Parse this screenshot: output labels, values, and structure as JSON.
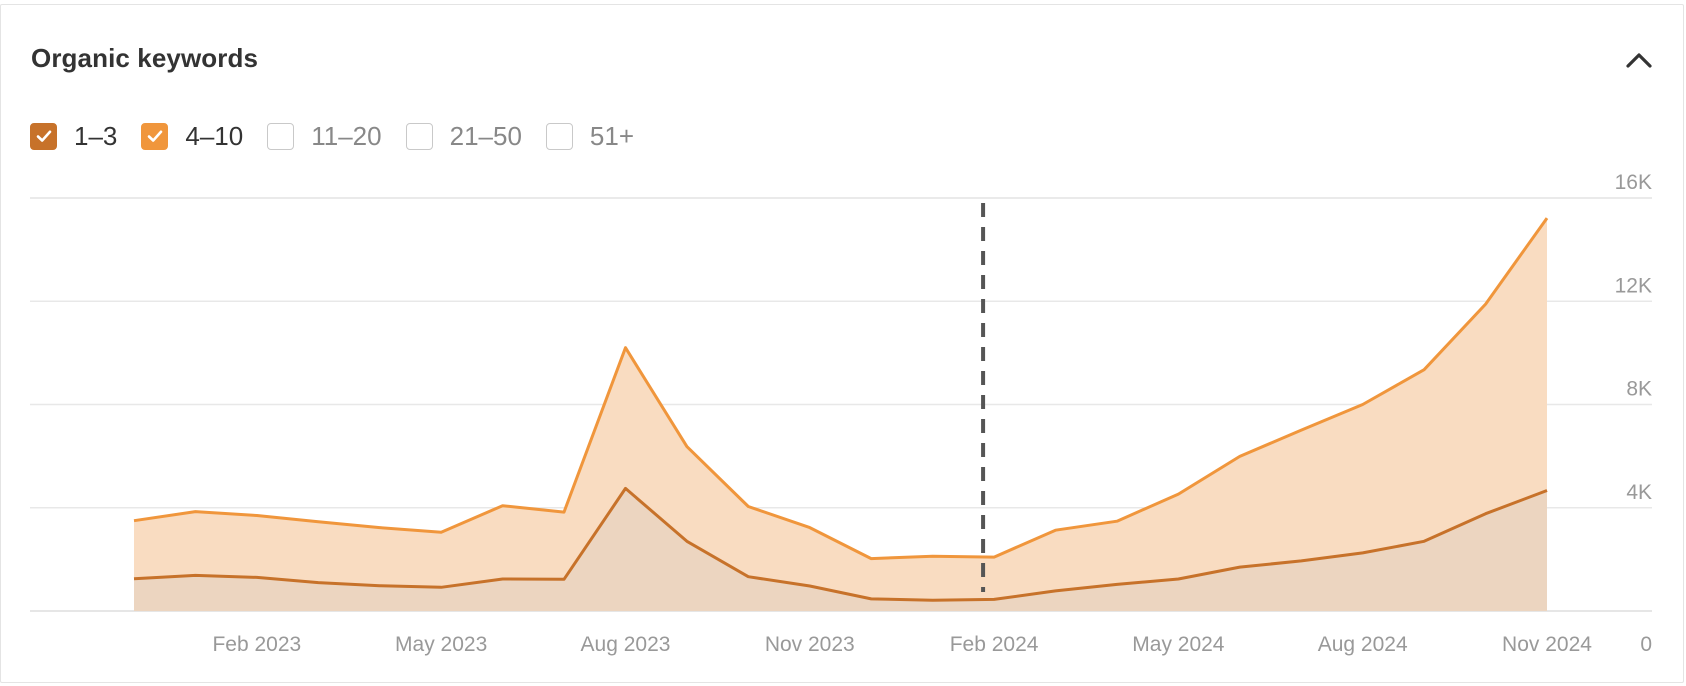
{
  "panel": {
    "title": "Organic keywords"
  },
  "legend": [
    {
      "label": "1–3",
      "checked": true,
      "color": "#c7722a"
    },
    {
      "label": "4–10",
      "checked": true,
      "color": "#f0963c"
    },
    {
      "label": "11–20",
      "checked": false,
      "color": ""
    },
    {
      "label": "21–50",
      "checked": false,
      "color": ""
    },
    {
      "label": "51+",
      "checked": false,
      "color": ""
    }
  ],
  "chart_data": {
    "type": "area",
    "stacked": true,
    "x_ticks": [
      "Feb 2023",
      "May 2023",
      "Aug 2023",
      "Nov 2023",
      "Feb 2024",
      "May 2024",
      "Aug 2024",
      "Nov 2024"
    ],
    "y_ticks": [
      "0",
      "4K",
      "8K",
      "12K",
      "16K"
    ],
    "ylim": [
      0,
      16000
    ],
    "y_axis_position": "right",
    "grid": true,
    "marker_line": {
      "x": "2024-02-01",
      "style": "dashed"
    },
    "x": [
      "2022-12-01",
      "2023-01-01",
      "2023-02-01",
      "2023-03-01",
      "2023-04-01",
      "2023-05-01",
      "2023-06-01",
      "2023-07-01",
      "2023-08-01",
      "2023-09-01",
      "2023-10-01",
      "2023-11-01",
      "2023-12-01",
      "2024-01-01",
      "2024-02-01",
      "2024-03-01",
      "2024-04-01",
      "2024-05-01",
      "2024-06-01",
      "2024-07-01",
      "2024-08-01",
      "2024-09-01",
      "2024-10-01",
      "2024-11-01"
    ],
    "series": [
      {
        "name": "1–3",
        "color": "#c7722a",
        "fill": "#ecd5c0",
        "values": [
          1250,
          1380,
          1300,
          1100,
          980,
          920,
          1240,
          1230,
          4750,
          2700,
          1330,
          970,
          470,
          420,
          450,
          780,
          1030,
          1240,
          1700,
          1940,
          2250,
          2700,
          3770,
          4670
        ]
      },
      {
        "name": "4–10",
        "color": "#f0963c",
        "fill": "#f9dcc1",
        "values": [
          2250,
          2470,
          2400,
          2360,
          2250,
          2130,
          2840,
          2600,
          5450,
          3670,
          2720,
          2260,
          1560,
          1700,
          1640,
          2350,
          2450,
          3290,
          4290,
          5070,
          5750,
          6650,
          8120,
          10550
        ]
      }
    ]
  },
  "icons": {
    "collapse": "chevron-up-icon",
    "check": "check-icon"
  }
}
